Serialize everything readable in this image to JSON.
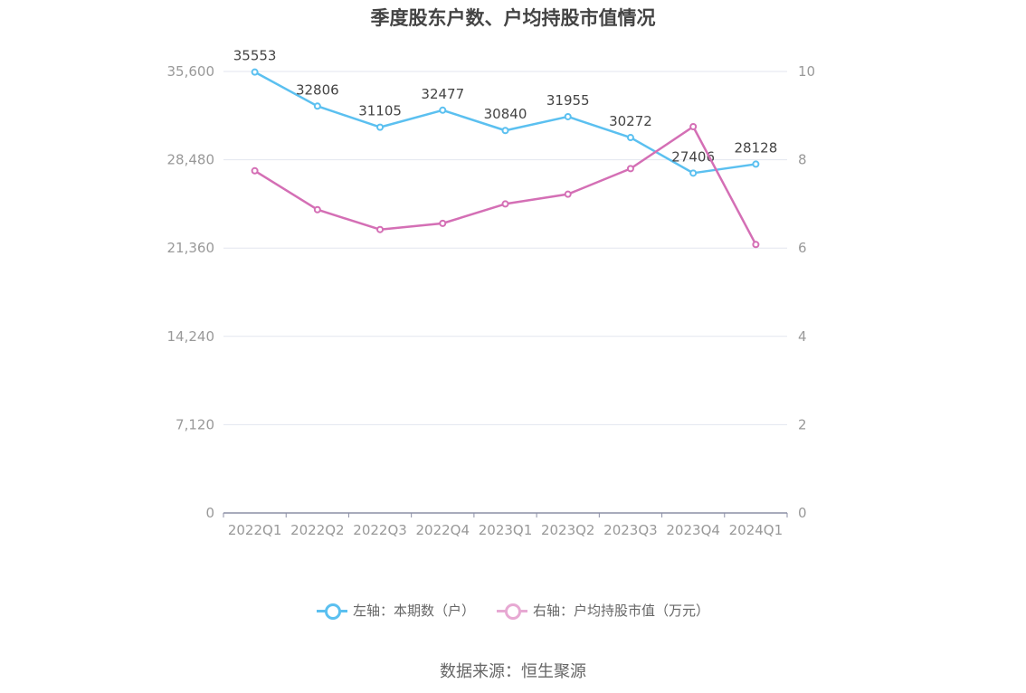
{
  "title": "季度股东户数、户均持股市值情况",
  "source": "数据来源：恒生聚源",
  "colors": {
    "left": "#5bc0f0",
    "right": "#d46fb5",
    "grid": "#e3e6ef",
    "axis": "#8c8fa6"
  },
  "chart_data": {
    "type": "line",
    "categories": [
      "2022Q1",
      "2022Q2",
      "2022Q3",
      "2022Q4",
      "2023Q1",
      "2023Q2",
      "2023Q3",
      "2023Q4",
      "2024Q1"
    ],
    "series": [
      {
        "name": "左轴：本期数（户）",
        "axis": "left",
        "values": [
          35553,
          32806,
          31105,
          32477,
          30840,
          31955,
          30272,
          27406,
          28128
        ],
        "labels_shown": true
      },
      {
        "name": "右轴：户均持股市值（万元）",
        "axis": "right",
        "values": [
          7.75,
          6.87,
          6.42,
          6.56,
          7.0,
          7.22,
          7.8,
          8.75,
          6.08
        ],
        "labels_shown": false
      }
    ],
    "left_axis": {
      "min": 0,
      "max": 35600,
      "ticks": [
        "0",
        "7,120",
        "14,240",
        "21,360",
        "28,480",
        "35,600"
      ]
    },
    "right_axis": {
      "min": 0,
      "max": 10,
      "ticks": [
        "0",
        "2",
        "4",
        "6",
        "8",
        "10"
      ]
    },
    "grid": true,
    "legend_position": "bottom"
  }
}
